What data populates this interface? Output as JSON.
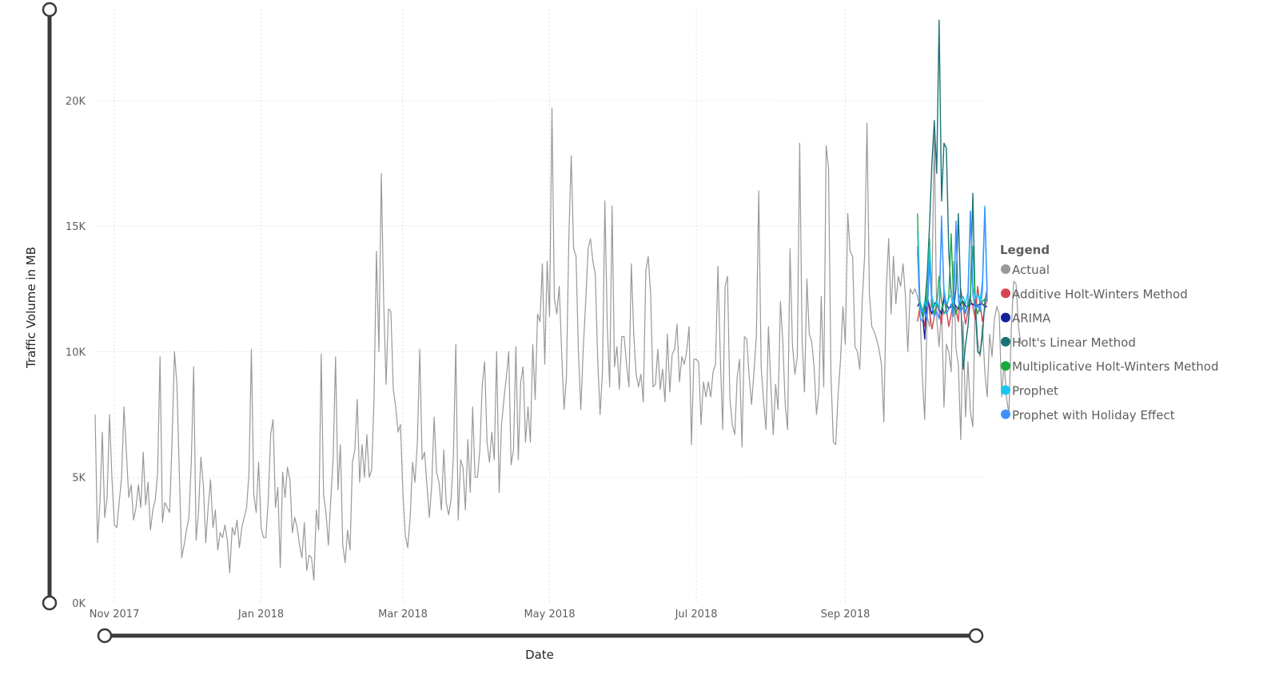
{
  "chart_data": {
    "type": "line",
    "xlabel": "Date",
    "ylabel": "Traffic Volume in MB",
    "ylim": [
      0,
      24000
    ],
    "y_ticks": [
      {
        "value": 0,
        "label": "0K"
      },
      {
        "value": 5000,
        "label": "5K"
      },
      {
        "value": 10000,
        "label": "10K"
      },
      {
        "value": 15000,
        "label": "15K"
      },
      {
        "value": 20000,
        "label": "20K"
      }
    ],
    "x_range": [
      "2017-10-25",
      "2018-10-29"
    ],
    "x_ticks": [
      {
        "date": "2017-11-01",
        "label": "Nov 2017"
      },
      {
        "date": "2018-01-01",
        "label": "Jan 2018"
      },
      {
        "date": "2018-03-01",
        "label": "Mar 2018"
      },
      {
        "date": "2018-05-01",
        "label": "May 2018"
      },
      {
        "date": "2018-07-01",
        "label": "Jul 2018"
      },
      {
        "date": "2018-09-01",
        "label": "Sep 2018"
      }
    ],
    "grid": true,
    "legend": {
      "title": "Legend",
      "position": "right"
    },
    "series": [
      {
        "name": "Actual",
        "color": "#999999",
        "start": "2017-10-24",
        "values": [
          7500,
          2400,
          4000,
          6800,
          3400,
          4200,
          7500,
          5000,
          3100,
          3000,
          4000,
          5000,
          7800,
          6000,
          4200,
          4700,
          3300,
          3800,
          4700,
          3800,
          6000,
          3900,
          4800,
          2900,
          3700,
          4100,
          5200,
          9800,
          3200,
          4000,
          3800,
          3600,
          6500,
          10000,
          8700,
          5200,
          1800,
          2300,
          2900,
          3400,
          5600,
          9400,
          2500,
          3600,
          5800,
          4700,
          2400,
          3800,
          4900,
          3000,
          3700,
          2100,
          2800,
          2600,
          3100,
          2500,
          1200,
          3000,
          2700,
          3300,
          2200,
          3000,
          3400,
          3800,
          5200,
          10100,
          4300,
          3600,
          5600,
          3000,
          2600,
          2600,
          4100,
          6700,
          7300,
          3800,
          4600,
          1400,
          5200,
          4200,
          5400,
          4900,
          2800,
          3400,
          3000,
          2300,
          1800,
          3200,
          1300,
          1900,
          1800,
          900,
          3700,
          2900,
          9900,
          4300,
          3600,
          2300,
          4100,
          5800,
          9800,
          4500,
          6300,
          2300,
          1600,
          2900,
          2100,
          5600,
          6100,
          8100,
          4800,
          6300,
          5000,
          6700,
          5000,
          5300,
          8100,
          14000,
          10000,
          17100,
          12000,
          8700,
          11700,
          11600,
          8500,
          7800,
          6800,
          7100,
          4400,
          2700,
          2200,
          3400,
          5600,
          4800,
          6400,
          10100,
          5700,
          6000,
          4700,
          3400,
          4700,
          7400,
          5200,
          4800,
          3700,
          6100,
          4000,
          3500,
          4100,
          5800,
          10300,
          3300,
          5700,
          5400,
          3700,
          6500,
          4400,
          7800,
          5000,
          5000,
          6100,
          8700,
          9600,
          6400,
          5600,
          6800,
          5700,
          10000,
          4400,
          7100,
          8100,
          9000,
          10000,
          5500,
          6100,
          10200,
          5700,
          8800,
          9400,
          6400,
          7800,
          6400,
          10300,
          8100,
          11500,
          11200,
          13500,
          9500,
          13600,
          11400,
          19700,
          12100,
          11500,
          12600,
          10000,
          7700,
          9000,
          14500,
          17800,
          14100,
          13800,
          10000,
          7700,
          10100,
          12000,
          14100,
          14500,
          13600,
          13100,
          9700,
          7500,
          9200,
          16000,
          11000,
          8600,
          15800,
          9400,
          10200,
          8500,
          10600,
          10600,
          9500,
          8600,
          13500,
          10700,
          9100,
          8600,
          9100,
          8000,
          13200,
          13800,
          12300,
          8600,
          8700,
          10100,
          8500,
          9300,
          8000,
          10700,
          8400,
          9900,
          10100,
          11100,
          8800,
          9800,
          9500,
          10000,
          11000,
          6300,
          9700,
          9700,
          9600,
          7100,
          8800,
          8200,
          8800,
          8200,
          9200,
          9500,
          13400,
          9800,
          6900,
          12600,
          13000,
          8100,
          7100,
          6700,
          9000,
          9700,
          6200,
          10600,
          10500,
          9000,
          7900,
          9200,
          10600,
          16400,
          9400,
          8000,
          6900,
          11000,
          8700,
          6700,
          8700,
          7700,
          12000,
          10400,
          7900,
          6900,
          14100,
          10300,
          9100,
          9800,
          18300,
          10500,
          8400,
          12900,
          10700,
          10400,
          9400,
          7500,
          8400,
          12200,
          8600,
          18200,
          17300,
          9100,
          6400,
          6300,
          8300,
          9700,
          11800,
          10300,
          15500,
          14000,
          13800,
          10200,
          10000,
          9300,
          12000,
          13800,
          19100,
          12300,
          11000,
          10800,
          10500,
          10100,
          9500,
          7200,
          12500,
          14500,
          11500,
          13800,
          11900,
          13000,
          12600,
          13500,
          12200,
          10000,
          12500,
          12300,
          12500,
          12200,
          11800,
          9000,
          7300,
          11400,
          11000,
          12500,
          18600,
          11300,
          10200,
          11800,
          7800,
          10300,
          10000,
          9200,
          13600,
          10100,
          9500,
          6500,
          11200,
          7400,
          9600,
          7600,
          7000,
          12300,
          10500,
          9800,
          11100,
          9200,
          8200,
          10700,
          9800,
          11300,
          11800,
          11500,
          8200,
          9600,
          8200,
          7500,
          10900,
          12800,
          12700,
          11000,
          10300
        ]
      },
      {
        "name": "Additive Holt-Winters Method",
        "color": "#d64550",
        "start": "2018-10-01",
        "values": [
          11200,
          11800,
          11500,
          11000,
          12300,
          11600,
          10900,
          11400,
          11900,
          11600,
          11100,
          12400,
          11700,
          11000,
          11500,
          12000,
          11700,
          11200,
          12500,
          11800,
          11100,
          11600,
          12100,
          11800,
          11300,
          12600,
          11900,
          11200,
          11700,
          12200
        ]
      },
      {
        "name": "ARIMA",
        "color": "#12239e",
        "start": "2018-10-01",
        "values": [
          11800,
          12000,
          11600,
          10500,
          12200,
          11800,
          11500,
          11900,
          12000,
          11700,
          11500,
          12100,
          11900,
          11700,
          11800,
          12000,
          11800,
          11700,
          11900,
          12000,
          11800,
          11800,
          11900,
          11900,
          11800,
          11800,
          11900,
          11900,
          11800,
          11800
        ]
      },
      {
        "name": "Holt's Linear Method",
        "color": "#197278",
        "start": "2018-10-01",
        "values": [
          14000,
          12000,
          11500,
          11800,
          13000,
          15000,
          17500,
          19200,
          17100,
          23200,
          16000,
          18300,
          18100,
          14000,
          12300,
          11600,
          12500,
          15500,
          12100,
          9300,
          10300,
          11000,
          12200,
          16300,
          11800,
          10000,
          9900,
          10600,
          12000,
          12500
        ]
      },
      {
        "name": "Multiplicative Holt-Winters Method",
        "color": "#1aab40",
        "start": "2018-10-01",
        "values": [
          15500,
          12000,
          11400,
          11600,
          12300,
          14500,
          12000,
          11500,
          11900,
          13000,
          12000,
          11500,
          11700,
          12200,
          14700,
          12000,
          11500,
          11800,
          12100,
          11900,
          11600,
          11800,
          12300,
          14200,
          12000,
          11500,
          11800,
          12000,
          12100,
          12000
        ]
      },
      {
        "name": "Prophet",
        "color": "#15c6f4",
        "start": "2018-10-01",
        "values": [
          14800,
          11800,
          11600,
          12000,
          11800,
          14200,
          12200,
          11800,
          12000,
          11700,
          15200,
          12500,
          11900,
          12100,
          12300,
          11800,
          14800,
          12300,
          12000,
          12200,
          11900,
          12400,
          15600,
          12600,
          12100,
          12300,
          12000,
          12800,
          15800,
          12400
        ]
      },
      {
        "name": "Prophet with Holiday Effect",
        "color": "#4092ff",
        "start": "2018-10-01",
        "values": [
          14200,
          11400,
          11200,
          11600,
          11300,
          13600,
          11800,
          11400,
          11600,
          11300,
          15400,
          12200,
          11500,
          11700,
          11900,
          11400,
          15200,
          12000,
          11600,
          11800,
          11500,
          12000,
          15600,
          12300,
          11700,
          11900,
          11600,
          12400,
          15700,
          12000
        ]
      }
    ]
  }
}
